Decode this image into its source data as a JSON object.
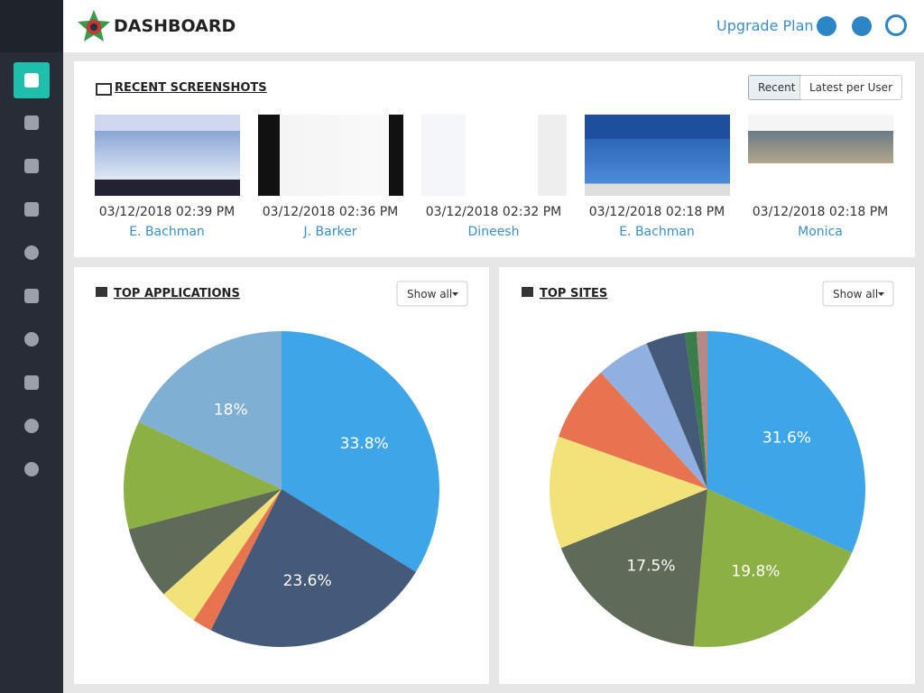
{
  "header": {
    "title": "DASHBOARD",
    "upgrade": "Upgrade Plan"
  },
  "recent": {
    "title": "RECENT SCREENSHOTS",
    "tabs": [
      "Recent",
      "Latest per User"
    ],
    "items": [
      {
        "time": "03/12/2018 02:39 PM",
        "user": "E. Bachman"
      },
      {
        "time": "03/12/2018 02:36 PM",
        "user": "J. Barker"
      },
      {
        "time": "03/12/2018 02:32 PM",
        "user": "Dineesh"
      },
      {
        "time": "03/12/2018 02:18 PM",
        "user": "E. Bachman"
      },
      {
        "time": "03/12/2018 02:18 PM",
        "user": "Monica"
      }
    ]
  },
  "chart_data": [
    {
      "type": "pie",
      "title": "TOP APPLICATIONS",
      "button": "Show all",
      "values": [
        33.8,
        23.6,
        2,
        4,
        7.5,
        11.1,
        18
      ],
      "value_labels": [
        "33.8%",
        "23.6%",
        null,
        null,
        null,
        null,
        "18%"
      ],
      "colors": [
        "#3ea6e8",
        "#445a78",
        "#e8734f",
        "#f1e27a",
        "#5f6b58",
        "#8cb043",
        "#7fb0d4"
      ]
    },
    {
      "type": "pie",
      "title": "TOP SITES",
      "button": "Show all",
      "values": [
        31.6,
        19.8,
        17.5,
        11.5,
        7.8,
        5.5,
        4,
        1.2,
        1.1
      ],
      "value_labels": [
        "31.6%",
        "19.8%",
        "17.5%",
        null,
        null,
        null,
        null,
        null,
        null
      ],
      "colors": [
        "#3ea6e8",
        "#8cb043",
        "#5f6b58",
        "#f1e27a",
        "#e8734f",
        "#8fb0e0",
        "#445a78",
        "#3a7d4a",
        "#b58a86"
      ]
    }
  ]
}
